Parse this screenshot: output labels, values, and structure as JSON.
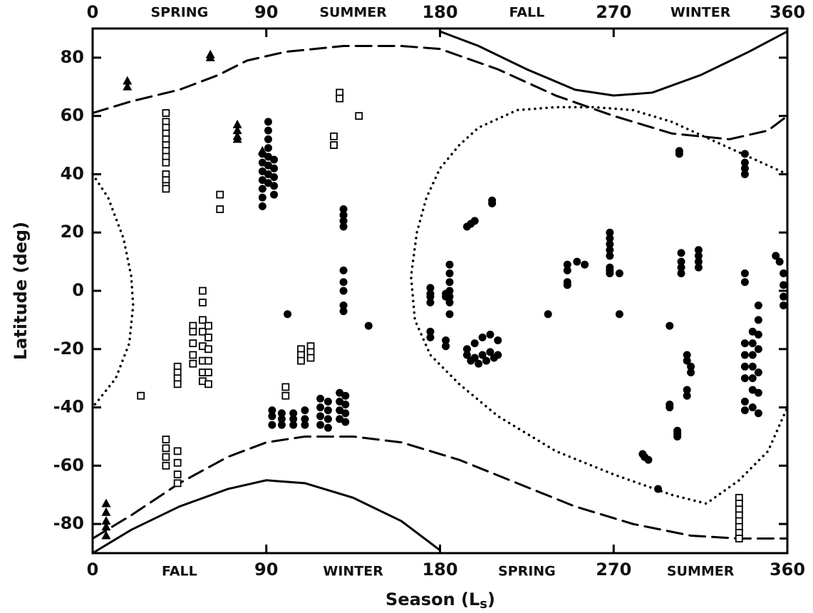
{
  "chart_data": {
    "type": "scatter",
    "x_label_parts": [
      "Season (L",
      "s",
      ")"
    ],
    "y_label": "Latitude (deg)",
    "xlim": [
      0,
      360
    ],
    "ylim": [
      -90,
      90
    ],
    "xticks": [
      0,
      90,
      180,
      270,
      360
    ],
    "yticks": [
      -80,
      -60,
      -40,
      -20,
      0,
      20,
      40,
      60,
      80
    ],
    "top_seasons": [
      {
        "value": 45,
        "label": "SPRING"
      },
      {
        "value": 135,
        "label": "SUMMER"
      },
      {
        "value": 225,
        "label": "FALL"
      },
      {
        "value": 315,
        "label": "WINTER"
      }
    ],
    "bottom_seasons": [
      {
        "value": 45,
        "label": "FALL"
      },
      {
        "value": 135,
        "label": "WINTER"
      },
      {
        "value": 225,
        "label": "SPRING"
      },
      {
        "value": 315,
        "label": "SUMMER"
      }
    ],
    "color": "#000000",
    "curves": [
      {
        "style": "solid",
        "x": [
          0,
          20,
          45,
          70,
          90,
          110,
          135,
          160,
          180
        ],
        "y": [
          -90,
          -82,
          -74,
          -68,
          -65,
          -66,
          -71,
          -79,
          -89
        ]
      },
      {
        "style": "solid",
        "x": [
          180,
          200,
          225,
          250,
          270,
          290,
          315,
          340,
          360
        ],
        "y": [
          89,
          84,
          76,
          69,
          67,
          68,
          74,
          82,
          89
        ]
      },
      {
        "style": "dashed",
        "x": [
          0,
          20,
          45,
          70,
          90,
          110,
          135,
          160,
          190,
          220,
          250,
          280,
          310,
          335,
          360
        ],
        "y": [
          -85,
          -77,
          -66,
          -57,
          -52,
          -50,
          -50,
          -52,
          -58,
          -66,
          -74,
          -80,
          -84,
          -85,
          -85
        ]
      },
      {
        "style": "dashed",
        "x": [
          0,
          20,
          45,
          65,
          80,
          100,
          130,
          160,
          180,
          210,
          240,
          270,
          300,
          330,
          350,
          360
        ],
        "y": [
          61,
          65,
          69,
          74,
          79,
          82,
          84,
          84,
          83,
          76,
          67,
          60,
          54,
          52,
          55,
          60
        ]
      },
      {
        "style": "dotted",
        "x": [
          0,
          8,
          16,
          20,
          21,
          19,
          12,
          0
        ],
        "y": [
          40,
          32,
          18,
          5,
          -5,
          -18,
          -30,
          -40
        ]
      },
      {
        "style": "dotted",
        "x": [
          360,
          340,
          320,
          300,
          280,
          260,
          240,
          220,
          200,
          190,
          180,
          173,
          168,
          165,
          167,
          175,
          190,
          210,
          240,
          270,
          300,
          318,
          335,
          350,
          360
        ],
        "y": [
          40,
          46,
          52,
          58,
          62,
          63,
          63,
          62,
          56,
          50,
          42,
          32,
          20,
          5,
          -10,
          -22,
          -32,
          -43,
          -55,
          -63,
          -70,
          -73,
          -65,
          -55,
          -40
        ]
      }
    ],
    "series": [
      {
        "marker": "triangle",
        "x": [
          18,
          18,
          61,
          61,
          75,
          75,
          75,
          75,
          88,
          7,
          7,
          7,
          7,
          7
        ],
        "y": [
          72,
          70,
          81,
          80,
          57,
          55,
          53,
          52,
          48,
          -73,
          -76,
          -79,
          -81,
          -84
        ]
      },
      {
        "marker": "square",
        "x": [
          38,
          38,
          38,
          38,
          38,
          38,
          38,
          38,
          38,
          38,
          38,
          38,
          38,
          38,
          38,
          38,
          38,
          66,
          66,
          25,
          52,
          52,
          52,
          52,
          52,
          57,
          57,
          57,
          57,
          57,
          57,
          57,
          57,
          60,
          60,
          60,
          60,
          60,
          60,
          44,
          44,
          44,
          44,
          44,
          44,
          44,
          44,
          100,
          100,
          108,
          108,
          108,
          113,
          113,
          113,
          125,
          125,
          128,
          128,
          138,
          335,
          335,
          335,
          335,
          335,
          335,
          335,
          335
        ],
        "y": [
          61,
          58,
          56,
          54,
          52,
          50,
          48,
          46,
          44,
          40,
          38,
          36,
          35,
          -51,
          -54,
          -57,
          -60,
          33,
          28,
          -36,
          -12,
          -14,
          -18,
          -22,
          -25,
          0,
          -4,
          -10,
          -14,
          -19,
          -24,
          -28,
          -31,
          -12,
          -16,
          -20,
          -24,
          -28,
          -32,
          -26,
          -28,
          -30,
          -32,
          -55,
          -59,
          -63,
          -66,
          -33,
          -36,
          -20,
          -22,
          -24,
          -19,
          -21,
          -23,
          53,
          50,
          68,
          66,
          60,
          -71,
          -73,
          -75,
          -77,
          -79,
          -81,
          -83,
          -85
        ]
      },
      {
        "marker": "circle",
        "x": [
          88,
          88,
          88,
          88,
          88,
          88,
          88,
          91,
          91,
          91,
          91,
          91,
          91,
          91,
          91,
          94,
          94,
          94,
          94,
          94,
          101,
          93,
          93,
          93,
          98,
          98,
          98,
          104,
          104,
          104,
          110,
          110,
          110,
          118,
          118,
          118,
          118,
          122,
          122,
          122,
          122,
          128,
          128,
          128,
          128,
          131,
          131,
          131,
          131,
          130,
          130,
          130,
          130,
          130,
          130,
          130,
          130,
          130,
          143,
          175,
          175,
          175,
          175,
          175,
          175,
          183,
          183,
          183,
          183,
          185,
          185,
          185,
          185,
          185,
          185,
          185,
          194,
          196,
          198,
          207,
          207,
          194,
          196,
          198,
          200,
          202,
          204,
          206,
          208,
          210,
          194,
          198,
          202,
          206,
          210,
          236,
          246,
          246,
          246,
          246,
          251,
          255,
          268,
          268,
          268,
          268,
          268,
          268,
          268,
          268,
          273,
          273,
          299,
          285,
          286,
          288,
          293,
          299,
          299,
          304,
          304,
          303,
          303,
          303,
          308,
          308,
          308,
          308,
          310,
          310,
          305,
          305,
          305,
          305,
          314,
          314,
          314,
          314,
          338,
          338,
          338,
          338,
          338,
          338,
          338,
          338,
          338,
          338,
          338,
          338,
          342,
          342,
          342,
          342,
          342,
          342,
          342,
          345,
          345,
          345,
          345,
          345,
          345,
          345,
          354,
          356,
          358,
          358,
          358,
          358
        ],
        "y": [
          29,
          32,
          35,
          38,
          41,
          44,
          47,
          58,
          55,
          52,
          49,
          46,
          43,
          40,
          37,
          45,
          42,
          39,
          36,
          33,
          -8,
          -41,
          -43,
          -46,
          -42,
          -44,
          -46,
          -42,
          -44,
          -46,
          -41,
          -44,
          -46,
          -37,
          -40,
          -43,
          -46,
          -38,
          -41,
          -44,
          -47,
          -35,
          -38,
          -41,
          -44,
          -36,
          -39,
          -42,
          -45,
          28,
          26,
          24,
          22,
          7,
          3,
          0,
          -5,
          -7,
          -12,
          1,
          -1,
          -2,
          -4,
          -14,
          -16,
          -17,
          -19,
          -1,
          -2,
          9,
          6,
          3,
          0,
          -2,
          -4,
          -8,
          22,
          23,
          24,
          31,
          30,
          -22,
          -24,
          -23,
          -25,
          -22,
          -24,
          -21,
          -23,
          -22,
          -20,
          -18,
          -16,
          -15,
          -17,
          -8,
          9,
          7,
          3,
          2,
          10,
          9,
          20,
          18,
          16,
          14,
          12,
          8,
          7,
          6,
          6,
          -8,
          -12,
          -56,
          -57,
          -58,
          -68,
          -39,
          -40,
          48,
          47,
          -48,
          -49,
          -50,
          -22,
          -24,
          -34,
          -36,
          -26,
          -28,
          13,
          10,
          8,
          6,
          14,
          12,
          10,
          8,
          47,
          44,
          42,
          40,
          6,
          3,
          -18,
          -22,
          -26,
          -30,
          -38,
          -41,
          -14,
          -18,
          -22,
          -26,
          -30,
          -34,
          -40,
          -5,
          -10,
          -15,
          -20,
          -28,
          -35,
          -42,
          12,
          10,
          6,
          2,
          -2,
          -5
        ]
      }
    ]
  }
}
